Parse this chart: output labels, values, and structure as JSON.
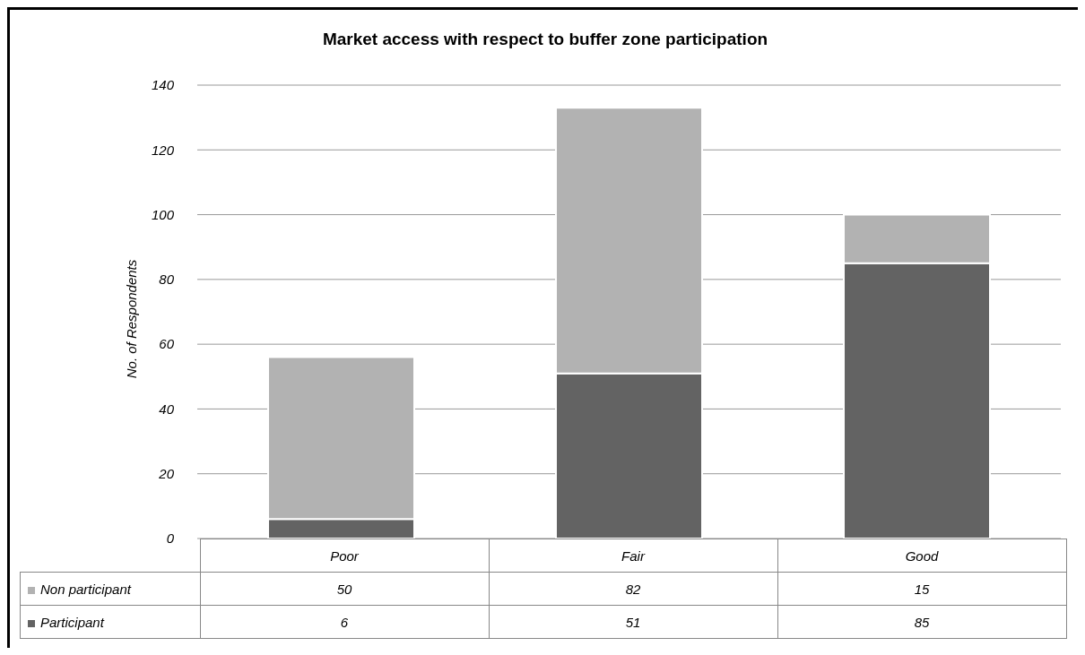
{
  "chart_data": {
    "type": "bar",
    "title": "Market access with respect to buffer zone participation",
    "ylabel": "No. of Respondents",
    "categories": [
      "Poor",
      "Fair",
      "Good"
    ],
    "stacked": true,
    "series": [
      {
        "name": "Participant",
        "color": "#636363",
        "values": [
          6,
          51,
          85
        ]
      },
      {
        "name": "Non participant",
        "color": "#b2b2b2",
        "values": [
          50,
          82,
          15
        ]
      }
    ],
    "ylim": [
      0,
      140
    ],
    "yticks": [
      0,
      20,
      40,
      60,
      80,
      100,
      120,
      140
    ],
    "grid": "y",
    "legend": "bottom",
    "data_labels": true
  }
}
